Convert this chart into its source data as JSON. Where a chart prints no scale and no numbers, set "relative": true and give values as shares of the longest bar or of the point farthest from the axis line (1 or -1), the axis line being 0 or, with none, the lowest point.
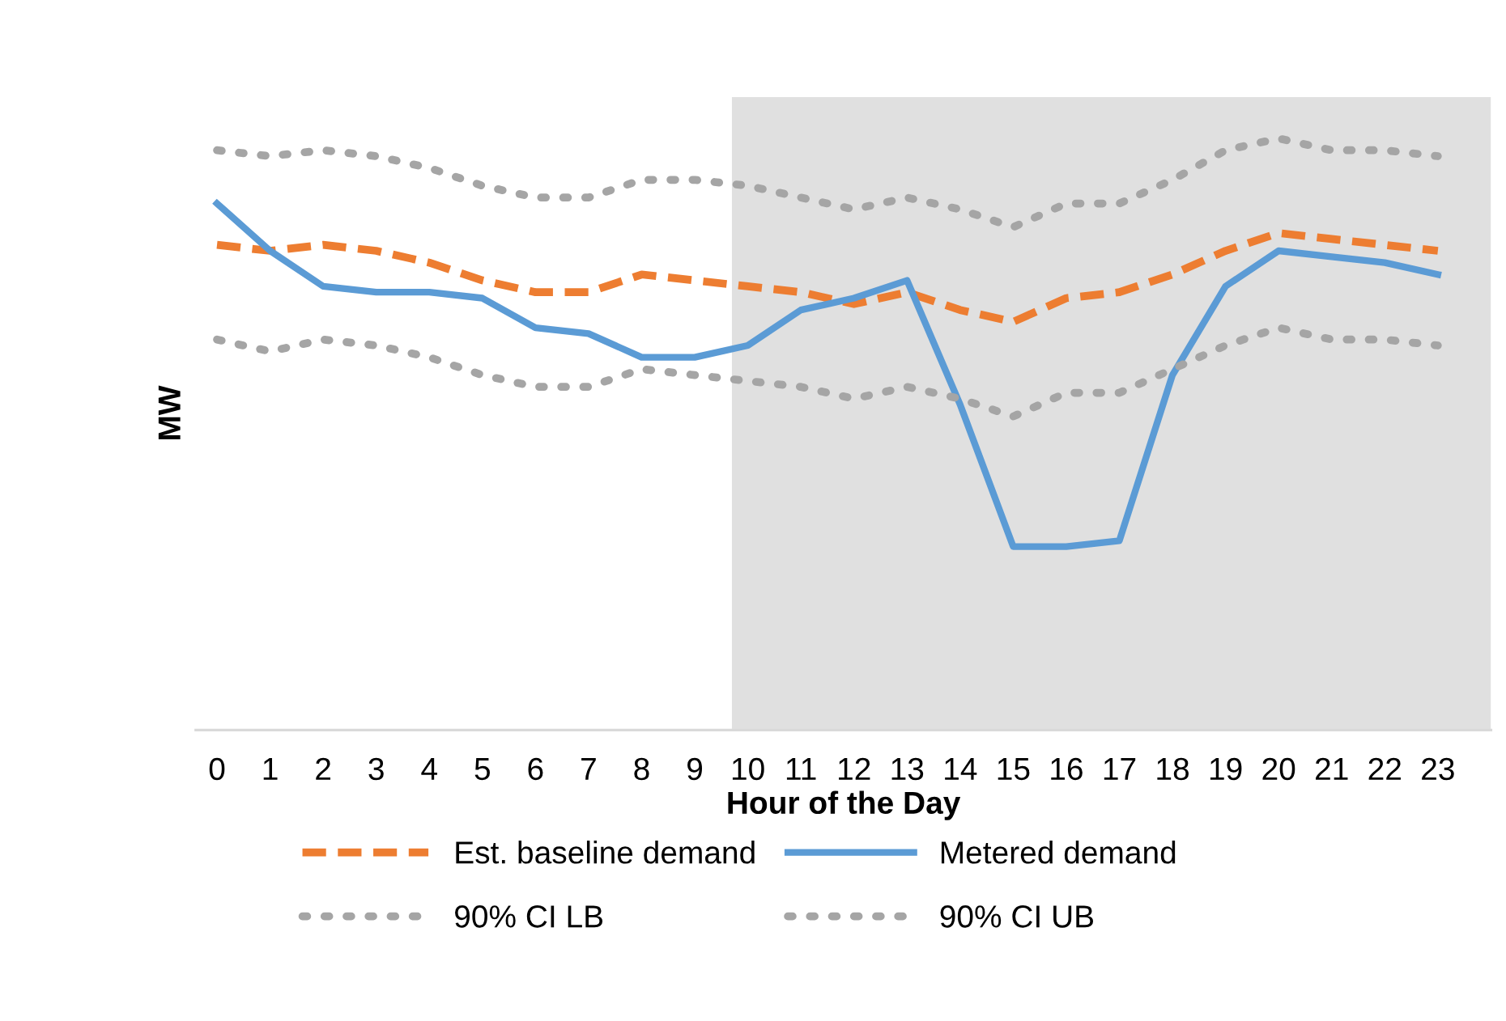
{
  "chart_data": {
    "type": "line",
    "relative": true,
    "xlabel": "Hour of the Day",
    "ylabel": "MW",
    "x": [
      0,
      1,
      2,
      3,
      4,
      5,
      6,
      7,
      8,
      9,
      10,
      11,
      12,
      13,
      14,
      15,
      16,
      17,
      18,
      19,
      20,
      21,
      22,
      23
    ],
    "xlim": [
      -0.4,
      24
    ],
    "xticks": [
      0,
      1,
      2,
      3,
      4,
      5,
      6,
      7,
      8,
      9,
      10,
      11,
      12,
      13,
      14,
      15,
      16,
      17,
      18,
      19,
      20,
      21,
      22,
      23
    ],
    "tick_labels": "x",
    "grid": false,
    "legend": "bottom",
    "marker": "none",
    "bands": [
      {
        "axis": "x",
        "from": 9.7,
        "to": 24,
        "color": "#e0e0e0"
      }
    ],
    "series": [
      {
        "name": "Est. baseline demand",
        "color": "#ed7d31",
        "line_style": "dashed",
        "values": [
          0.82,
          0.81,
          0.82,
          0.81,
          0.79,
          0.76,
          0.74,
          0.74,
          0.77,
          0.76,
          0.75,
          0.74,
          0.72,
          0.74,
          0.71,
          0.69,
          0.73,
          0.74,
          0.77,
          0.81,
          0.84,
          0.83,
          0.82,
          0.81
        ]
      },
      {
        "name": "Metered demand",
        "color": "#5b9bd5",
        "line_style": "solid",
        "values": [
          0.89,
          0.81,
          0.75,
          0.74,
          0.74,
          0.73,
          0.68,
          0.67,
          0.63,
          0.63,
          0.65,
          0.71,
          0.73,
          0.76,
          0.55,
          0.31,
          0.31,
          0.32,
          0.6,
          0.75,
          0.81,
          0.8,
          0.79,
          0.77
        ]
      },
      {
        "name": "90% CI LB",
        "color": "#a5a5a5",
        "line_style": "dotted",
        "values": [
          0.66,
          0.64,
          0.66,
          0.65,
          0.63,
          0.6,
          0.58,
          0.58,
          0.61,
          0.6,
          0.59,
          0.58,
          0.56,
          0.58,
          0.56,
          0.53,
          0.57,
          0.57,
          0.61,
          0.65,
          0.68,
          0.66,
          0.66,
          0.65
        ]
      },
      {
        "name": "90% CI UB",
        "color": "#a5a5a5",
        "line_style": "dotted",
        "values": [
          0.98,
          0.97,
          0.98,
          0.97,
          0.95,
          0.92,
          0.9,
          0.9,
          0.93,
          0.93,
          0.92,
          0.9,
          0.88,
          0.9,
          0.88,
          0.85,
          0.89,
          0.89,
          0.93,
          0.98,
          1.0,
          0.98,
          0.98,
          0.97
        ]
      }
    ]
  }
}
